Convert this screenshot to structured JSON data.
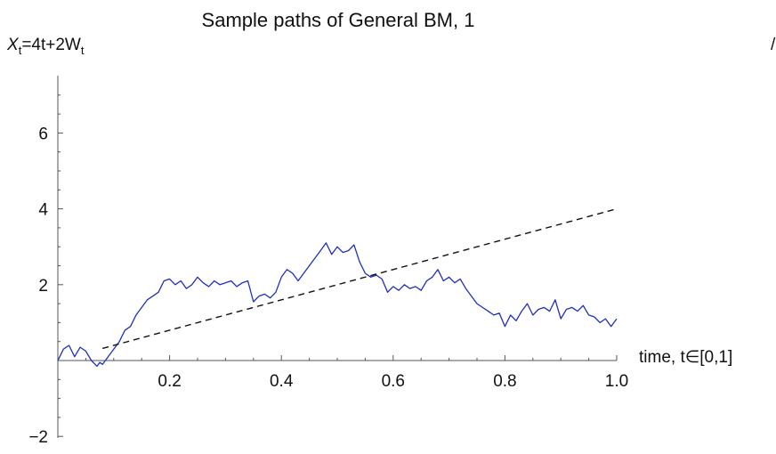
{
  "chart_data": {
    "type": "line",
    "title": "Sample paths of General BM, 1",
    "ylabel_parts": [
      "X",
      "t",
      "=4t+2W",
      "t"
    ],
    "xlabel": "time, t∈[0,1]",
    "stray_mark": "/",
    "xlim": [
      0,
      1
    ],
    "ylim": [
      -2.2,
      7.5
    ],
    "x_ticks": [
      {
        "value": 0.2,
        "label": "0.2"
      },
      {
        "value": 0.4,
        "label": "0.4"
      },
      {
        "value": 0.6,
        "label": "0.6"
      },
      {
        "value": 0.8,
        "label": "0.8"
      },
      {
        "value": 1.0,
        "label": "1.0"
      }
    ],
    "y_ticks": [
      {
        "value": -2,
        "label": "−2"
      },
      {
        "value": 2,
        "label": "2"
      },
      {
        "value": 4,
        "label": "4"
      },
      {
        "value": 6,
        "label": "6"
      }
    ],
    "grid": false,
    "series": [
      {
        "style": "solid",
        "color": "#1f2fbf",
        "x": [
          0.0,
          0.01,
          0.02,
          0.03,
          0.04,
          0.05,
          0.06,
          0.07,
          0.075,
          0.08,
          0.09,
          0.1,
          0.11,
          0.12,
          0.13,
          0.14,
          0.15,
          0.16,
          0.17,
          0.18,
          0.19,
          0.2,
          0.21,
          0.22,
          0.23,
          0.24,
          0.25,
          0.26,
          0.27,
          0.28,
          0.29,
          0.3,
          0.31,
          0.32,
          0.33,
          0.34,
          0.35,
          0.36,
          0.37,
          0.38,
          0.39,
          0.4,
          0.41,
          0.42,
          0.43,
          0.44,
          0.45,
          0.46,
          0.47,
          0.48,
          0.49,
          0.5,
          0.51,
          0.52,
          0.53,
          0.54,
          0.55,
          0.56,
          0.57,
          0.58,
          0.59,
          0.6,
          0.61,
          0.62,
          0.63,
          0.64,
          0.65,
          0.66,
          0.67,
          0.68,
          0.69,
          0.7,
          0.71,
          0.72,
          0.73,
          0.74,
          0.75,
          0.76,
          0.77,
          0.78,
          0.79,
          0.8,
          0.81,
          0.82,
          0.83,
          0.84,
          0.85,
          0.86,
          0.87,
          0.88,
          0.89,
          0.9,
          0.91,
          0.92,
          0.93,
          0.94,
          0.95,
          0.96,
          0.97,
          0.98,
          0.99,
          1.0
        ],
        "y": [
          0.0,
          0.3,
          0.4,
          0.1,
          0.35,
          0.25,
          0.0,
          -0.15,
          -0.05,
          -0.1,
          0.1,
          0.3,
          0.5,
          0.8,
          0.9,
          1.2,
          1.4,
          1.6,
          1.7,
          1.8,
          2.1,
          2.15,
          2.0,
          2.1,
          1.9,
          2.0,
          2.2,
          2.05,
          1.95,
          2.1,
          2.0,
          2.05,
          2.1,
          1.95,
          2.05,
          2.1,
          1.55,
          1.7,
          1.75,
          1.65,
          1.8,
          2.2,
          2.4,
          2.3,
          2.1,
          2.3,
          2.5,
          2.7,
          2.9,
          3.1,
          2.8,
          3.0,
          2.85,
          2.9,
          3.05,
          2.6,
          2.3,
          2.2,
          2.25,
          2.15,
          1.8,
          1.95,
          1.85,
          2.0,
          1.9,
          1.95,
          1.85,
          2.1,
          2.2,
          2.4,
          2.1,
          2.2,
          2.05,
          2.15,
          1.9,
          1.7,
          1.5,
          1.4,
          1.3,
          1.2,
          1.25,
          0.9,
          1.2,
          1.05,
          1.3,
          1.5,
          1.2,
          1.35,
          1.4,
          1.3,
          1.6,
          1.1,
          1.35,
          1.4,
          1.3,
          1.45,
          1.2,
          1.15,
          1.0,
          1.1,
          0.9,
          1.1
        ]
      },
      {
        "style": "dashed",
        "color": "#111111",
        "x": [
          0.08,
          1.0
        ],
        "y": [
          0.32,
          4.0
        ]
      }
    ]
  }
}
